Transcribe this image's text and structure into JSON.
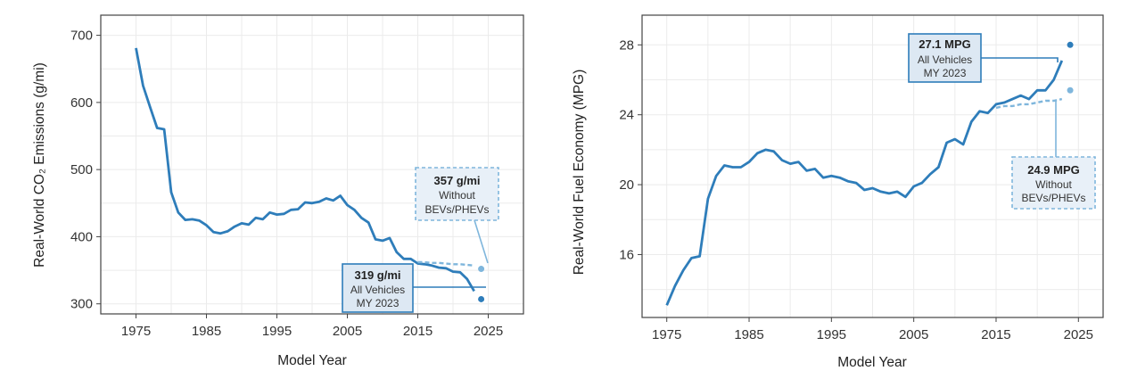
{
  "chart_data": [
    {
      "type": "line",
      "title": "",
      "xlabel": "Model Year",
      "ylabel": "Real-World CO₂ Emissions (g/mi)",
      "xlim": [
        1970,
        2030
      ],
      "ylim": [
        285,
        730
      ],
      "x_ticks": [
        1975,
        1985,
        1995,
        2005,
        2015,
        2025
      ],
      "y_ticks": [
        300,
        400,
        500,
        600,
        700
      ],
      "grid": true,
      "legend": "none",
      "series": [
        {
          "role": "all",
          "color": "#2e7dba",
          "x": [
            1975,
            1976,
            1977,
            1978,
            1979,
            1980,
            1981,
            1982,
            1983,
            1984,
            1985,
            1986,
            1987,
            1988,
            1989,
            1990,
            1991,
            1992,
            1993,
            1994,
            1995,
            1996,
            1997,
            1998,
            1999,
            2000,
            2001,
            2002,
            2003,
            2004,
            2005,
            2006,
            2007,
            2008,
            2009,
            2010,
            2011,
            2012,
            2013,
            2014,
            2015,
            2016,
            2017,
            2018,
            2019,
            2020,
            2021,
            2022,
            2023
          ],
          "values": [
            681,
            625,
            593,
            562,
            560,
            466,
            436,
            425,
            426,
            424,
            417,
            407,
            405,
            408,
            415,
            420,
            418,
            428,
            426,
            436,
            433,
            434,
            440,
            441,
            451,
            450,
            452,
            457,
            454,
            461,
            447,
            440,
            428,
            421,
            396,
            394,
            398,
            377,
            367,
            367,
            360,
            359,
            357,
            354,
            353,
            348,
            347,
            337,
            319
          ]
        },
        {
          "role": "without_bev_phev",
          "color": "#7fb6dc",
          "x": [
            2015,
            2016,
            2017,
            2018,
            2019,
            2020,
            2021,
            2022,
            2023
          ],
          "values": [
            362,
            362,
            361,
            361,
            360,
            359,
            359,
            358,
            357
          ]
        }
      ],
      "markers": [
        {
          "year": 2024,
          "value": 352,
          "color": "#7fb6dc"
        },
        {
          "year": 2024,
          "value": 307,
          "color": "#2e7dba"
        }
      ],
      "callouts": [
        {
          "style": "dashed",
          "value": "357 g/mi",
          "line1": "Without",
          "line2": "BEVs/PHEVs"
        },
        {
          "style": "solid",
          "value": "319 g/mi",
          "line1": "All Vehicles",
          "line2": "MY 2023"
        }
      ]
    },
    {
      "type": "line",
      "title": "",
      "xlabel": "Model Year",
      "ylabel": "Real-World Fuel Economy (MPG)",
      "xlim": [
        1972,
        2028
      ],
      "ylim": [
        12.4,
        29.7
      ],
      "x_ticks": [
        1975,
        1985,
        1995,
        2005,
        2015,
        2025
      ],
      "y_ticks": [
        16,
        20,
        24,
        28
      ],
      "grid": true,
      "legend": "none",
      "series": [
        {
          "role": "all",
          "color": "#2e7dba",
          "x": [
            1975,
            1976,
            1977,
            1978,
            1979,
            1980,
            1981,
            1982,
            1983,
            1984,
            1985,
            1986,
            1987,
            1988,
            1989,
            1990,
            1991,
            1992,
            1993,
            1994,
            1995,
            1996,
            1997,
            1998,
            1999,
            2000,
            2001,
            2002,
            2003,
            2004,
            2005,
            2006,
            2007,
            2008,
            2009,
            2010,
            2011,
            2012,
            2013,
            2014,
            2015,
            2016,
            2017,
            2018,
            2019,
            2020,
            2021,
            2022,
            2023
          ],
          "values": [
            13.1,
            14.2,
            15.1,
            15.8,
            15.9,
            19.2,
            20.5,
            21.1,
            21.0,
            21.0,
            21.3,
            21.8,
            22.0,
            21.9,
            21.4,
            21.2,
            21.3,
            20.8,
            20.9,
            20.4,
            20.5,
            20.4,
            20.2,
            20.1,
            19.7,
            19.8,
            19.6,
            19.5,
            19.6,
            19.3,
            19.9,
            20.1,
            20.6,
            21.0,
            22.4,
            22.6,
            22.3,
            23.6,
            24.2,
            24.1,
            24.6,
            24.7,
            24.9,
            25.1,
            24.9,
            25.4,
            25.4,
            26.0,
            27.1
          ]
        },
        {
          "role": "without_bev_phev",
          "color": "#7fb6dc",
          "x": [
            2015,
            2016,
            2017,
            2018,
            2019,
            2020,
            2021,
            2022,
            2023
          ],
          "values": [
            24.4,
            24.5,
            24.5,
            24.6,
            24.6,
            24.7,
            24.8,
            24.8,
            24.9
          ]
        }
      ],
      "markers": [
        {
          "year": 2024,
          "value": 28.0,
          "color": "#2e7dba"
        },
        {
          "year": 2024,
          "value": 25.4,
          "color": "#7fb6dc"
        }
      ],
      "callouts": [
        {
          "style": "solid",
          "value": "27.1 MPG",
          "line1": "All Vehicles",
          "line2": "MY 2023"
        },
        {
          "style": "dashed",
          "value": "24.9 MPG",
          "line1": "Without",
          "line2": "BEVs/PHEVs"
        }
      ]
    }
  ]
}
